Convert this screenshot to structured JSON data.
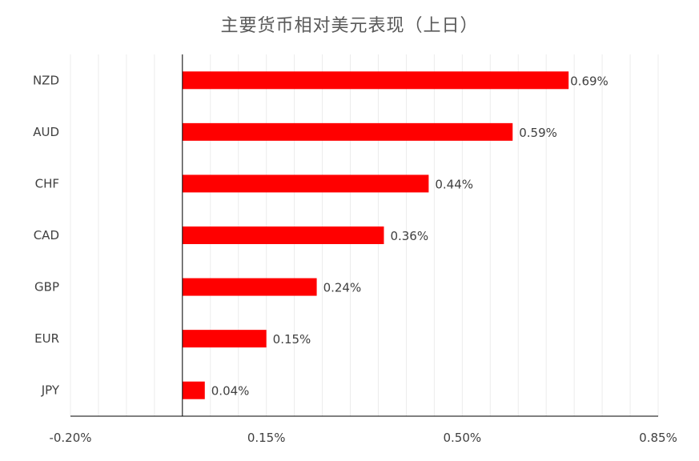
{
  "chart_data": {
    "type": "bar",
    "orientation": "horizontal",
    "title": "主要货币相对美元表现（上日）",
    "categories": [
      "NZD",
      "AUD",
      "CHF",
      "CAD",
      "GBP",
      "EUR",
      "JPY"
    ],
    "values": [
      0.69,
      0.59,
      0.44,
      0.36,
      0.24,
      0.15,
      0.04
    ],
    "value_labels": [
      "0.69%",
      "0.59%",
      "0.44%",
      "0.36%",
      "0.24%",
      "0.15%",
      "0.04%"
    ],
    "xlim": [
      -0.2,
      0.85
    ],
    "xticks": [
      -0.2,
      0.15,
      0.5,
      0.85
    ],
    "xtick_labels": [
      "-0.20%",
      "0.15%",
      "0.50%",
      "0.85%"
    ],
    "xlabel": "",
    "ylabel": "",
    "bar_color": "#FF0000",
    "grid": true,
    "legend": "none"
  }
}
